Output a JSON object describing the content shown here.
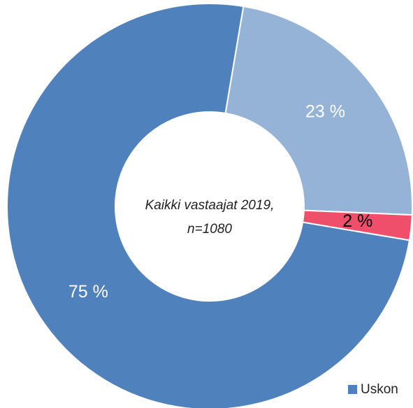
{
  "chart_data": {
    "type": "donut",
    "categories": [
      null,
      null,
      "Uskon"
    ],
    "values": [
      23,
      2,
      75
    ],
    "value_labels": [
      "23 %",
      "2 %",
      "75 %"
    ],
    "colors": [
      "#95b3d7",
      "#f04f6c",
      "#4f81bd"
    ],
    "label_colors": [
      "#ffffff",
      "#000000",
      "#ffffff"
    ],
    "center_text": [
      "Kaikki vastaajat 2019,",
      "n=1080"
    ]
  }
}
